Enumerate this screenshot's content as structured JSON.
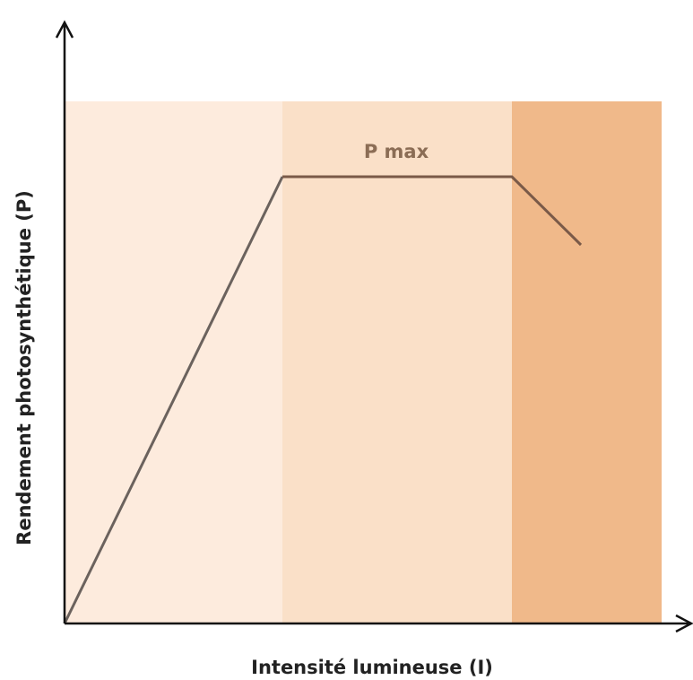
{
  "axes": {
    "y_label": "Rendement photosynthétique (P)",
    "x_label": "Intensité lumineuse (I)"
  },
  "annotation": "P max"
}
